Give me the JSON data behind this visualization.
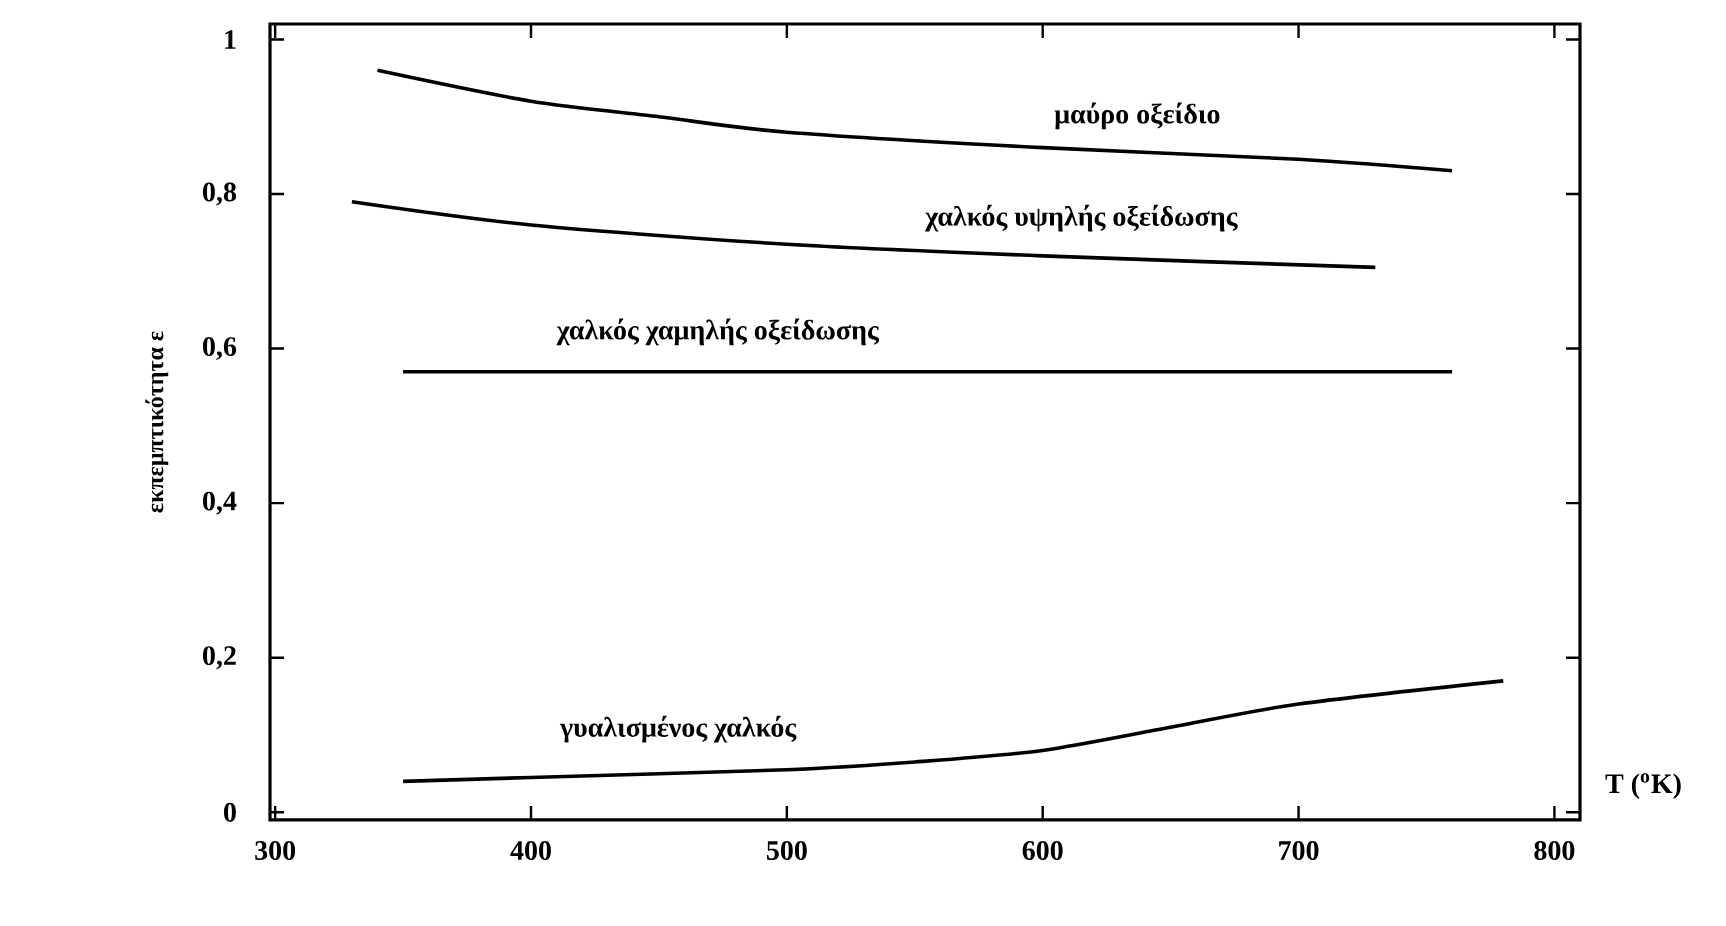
{
  "chart_data": {
    "type": "line",
    "xlabel": "T ($^{o}$K)",
    "ylabel": "εκπεμπτικότητα ε",
    "xlim": [
      298,
      810
    ],
    "ylim": [
      -0.01,
      1.02
    ],
    "xticks": [
      300,
      400,
      500,
      600,
      700,
      800
    ],
    "yticks": [
      0,
      {
        "value": 0.2,
        "label": "0,2"
      },
      {
        "value": 0.4,
        "label": "0,4"
      },
      {
        "value": 0.6,
        "label": "0,6"
      },
      {
        "value": 0.8,
        "label": "0,8"
      },
      1
    ],
    "series": [
      {
        "name": "μαύρο οξείδιο",
        "color": "#000000",
        "x": [
          340,
          400,
          450,
          500,
          600,
          700,
          760
        ],
        "values": [
          0.96,
          0.92,
          0.9,
          0.88,
          0.86,
          0.845,
          0.83
        ]
      },
      {
        "name": "χαλκός υψηλής οξείδωσης",
        "color": "#000000",
        "x": [
          330,
          400,
          500,
          600,
          730
        ],
        "values": [
          0.79,
          0.76,
          0.735,
          0.72,
          0.705
        ]
      },
      {
        "name": "χαλκός χαμηλής οξείδωσης",
        "color": "#000000",
        "x": [
          350,
          550,
          760
        ],
        "values": [
          0.57,
          0.57,
          0.57
        ]
      },
      {
        "name": "γυαλισμένος χαλκός",
        "color": "#000000",
        "x": [
          350,
          400,
          500,
          550,
          600,
          650,
          700,
          780
        ],
        "values": [
          0.04,
          0.045,
          0.055,
          0.065,
          0.08,
          0.11,
          0.14,
          0.17
        ]
      }
    ]
  }
}
